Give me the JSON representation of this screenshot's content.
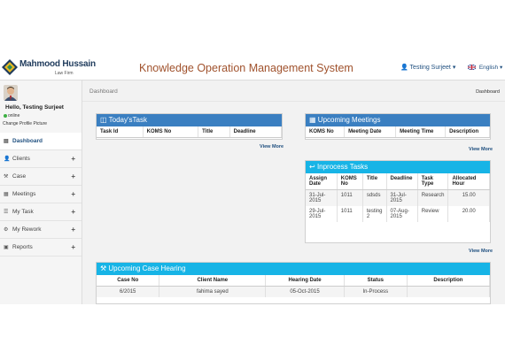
{
  "header": {
    "logo_name": "Mahmood Hussain",
    "logo_sub": "Law Firm",
    "app_title": "Knowledge Operation Management System",
    "user_label": "Testing Surjeet",
    "language_label": "English"
  },
  "sidebar": {
    "greeting": "Hello, Testing Surjeet",
    "status": "online",
    "change_picture": "Change Profile Picture",
    "items": [
      {
        "label": "Dashboard",
        "icon": "dashboard-icon"
      },
      {
        "label": "Clients",
        "icon": "user-icon"
      },
      {
        "label": "Case",
        "icon": "gavel-icon"
      },
      {
        "label": "Meetings",
        "icon": "calendar-icon"
      },
      {
        "label": "My Task",
        "icon": "task-icon"
      },
      {
        "label": "My Rework",
        "icon": "gears-icon"
      },
      {
        "label": "Reports",
        "icon": "folder-icon"
      }
    ]
  },
  "breadcrumb": {
    "left": "Dashboard",
    "right": "Dashboard"
  },
  "todays_task": {
    "title": "Today'sTask",
    "icon": "inbox-icon",
    "columns": [
      "Task Id",
      "KOMS No",
      "Title",
      "Deadline"
    ],
    "view_more": "View More"
  },
  "meetings": {
    "title": "Upcoming Meetings",
    "icon": "calendar-icon",
    "columns": [
      "KOMS No",
      "Meeting Date",
      "Meeting Time",
      "Description"
    ],
    "view_more": "View More"
  },
  "inprocess": {
    "title": "Inprocess Tasks",
    "icon": "reply-icon",
    "columns": [
      "Assign Date",
      "KOMS No",
      "Title",
      "Deadline",
      "Task Type",
      "Allocated Hour"
    ],
    "rows": [
      [
        "31-Jul-2015",
        "1011",
        "sdsds",
        "31-Jul-2015",
        "Research",
        "15.00"
      ],
      [
        "29-Jul-2015",
        "1011",
        "testing 2",
        "07-Aug-2015",
        "Review",
        "20.00"
      ]
    ],
    "view_more": "View More"
  },
  "hearings": {
    "title": "Upcoming Case Hearing",
    "icon": "gavel-icon",
    "columns": [
      "Case No",
      "Client Name",
      "Hearing Date",
      "Status",
      "Description"
    ],
    "rows": [
      [
        "6/2015",
        "fahima sayed",
        "05-Oct-2015",
        "In-Process",
        ""
      ]
    ]
  },
  "colors": {
    "panel_blue": "#3a7fc1",
    "panel_cyan": "#17b4e6",
    "title_brown": "#a0522d",
    "online_green": "#3cb043"
  }
}
